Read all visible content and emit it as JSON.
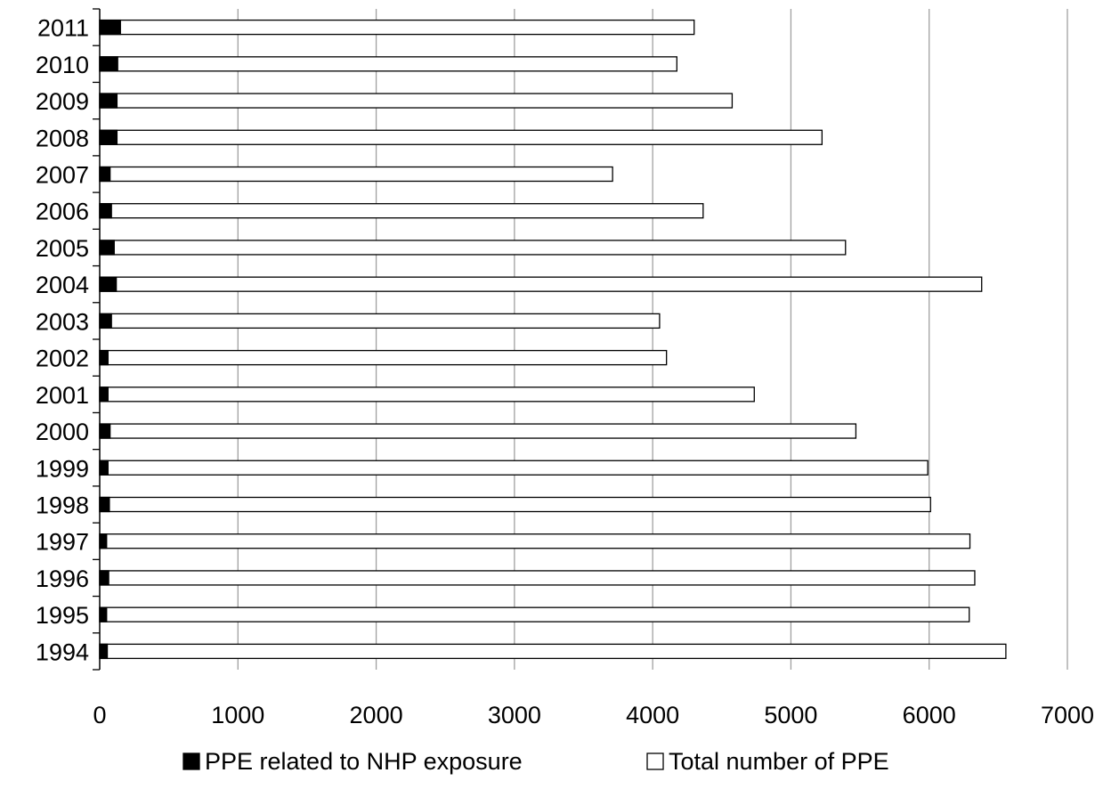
{
  "chart_data": {
    "type": "bar",
    "orientation": "horizontal",
    "stacking": "overlaid",
    "title": "",
    "xlabel": "",
    "ylabel": "",
    "categories": [
      "2011",
      "2010",
      "2009",
      "2008",
      "2007",
      "2006",
      "2005",
      "2004",
      "2003",
      "2002",
      "2001",
      "2000",
      "1999",
      "1998",
      "1997",
      "1996",
      "1995",
      "1994"
    ],
    "series": [
      {
        "name": "PPE related to NHP exposure",
        "color": "#000000",
        "values": [
          150,
          130,
          125,
          125,
          75,
          85,
          105,
          120,
          85,
          60,
          60,
          75,
          60,
          70,
          50,
          65,
          50,
          55
        ]
      },
      {
        "name": "Total number of PPE",
        "color": "#ffffff",
        "values": [
          4300,
          4175,
          4575,
          5225,
          3710,
          4365,
          5395,
          6380,
          4050,
          4100,
          4735,
          5470,
          5990,
          6010,
          6295,
          6330,
          6290,
          6555
        ]
      }
    ],
    "xlim": [
      0,
      7000
    ],
    "xticks": [
      0,
      1000,
      2000,
      3000,
      4000,
      5000,
      6000,
      7000
    ],
    "grid": "vertical",
    "gridline_color": "#a0a0a0",
    "legend_position": "bottom"
  }
}
